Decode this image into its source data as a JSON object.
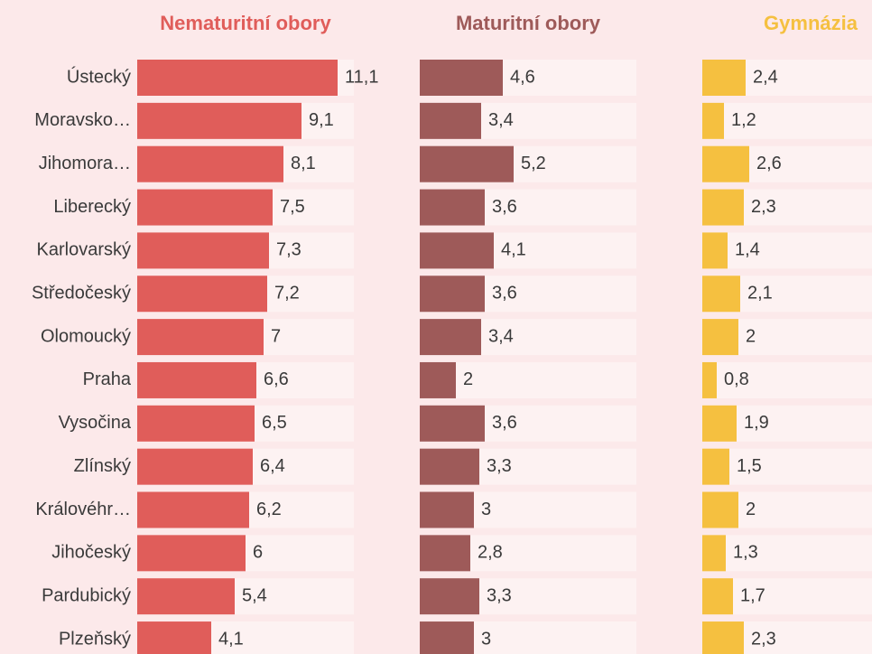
{
  "chart_data": {
    "type": "bar",
    "categories": [
      "Ústecký",
      "Moravsko…",
      "Jihomora…",
      "Liberecký",
      "Karlovarský",
      "Středočeský",
      "Olomoucký",
      "Praha",
      "Vysočina",
      "Zlínský",
      "Královéhr…",
      "Jihočeský",
      "Pardubický",
      "Plzeňský"
    ],
    "xlim": [
      0,
      12
    ],
    "series": [
      {
        "name": "Nematuritní obory",
        "color": "#e05d5a",
        "values": [
          11.1,
          9.1,
          8.1,
          7.5,
          7.3,
          7.2,
          7,
          6.6,
          6.5,
          6.4,
          6.2,
          6,
          5.4,
          4.1
        ],
        "value_labels": [
          "11,1",
          "9,1",
          "8,1",
          "7,5",
          "7,3",
          "7,2",
          "7",
          "6,6",
          "6,5",
          "6,4",
          "6,2",
          "6",
          "5,4",
          "4,1"
        ]
      },
      {
        "name": "Maturitní obory",
        "color": "#9e5a59",
        "values": [
          4.6,
          3.4,
          5.2,
          3.6,
          4.1,
          3.6,
          3.4,
          2,
          3.6,
          3.3,
          3,
          2.8,
          3.3,
          3
        ],
        "value_labels": [
          "4,6",
          "3,4",
          "5,2",
          "3,6",
          "4,1",
          "3,6",
          "3,4",
          "2",
          "3,6",
          "3,3",
          "3",
          "2,8",
          "3,3",
          "3"
        ]
      },
      {
        "name": "Gymnázia",
        "color": "#f5c040",
        "values": [
          2.4,
          1.2,
          2.6,
          2.3,
          1.4,
          2.1,
          2,
          0.8,
          1.9,
          1.5,
          2,
          1.3,
          1.7,
          2.3
        ],
        "value_labels": [
          "2,4",
          "1,2",
          "2,6",
          "2,3",
          "1,4",
          "2,1",
          "2",
          "0,8",
          "1,9",
          "1,5",
          "2",
          "1,3",
          "1,7",
          "2,3"
        ]
      }
    ]
  }
}
